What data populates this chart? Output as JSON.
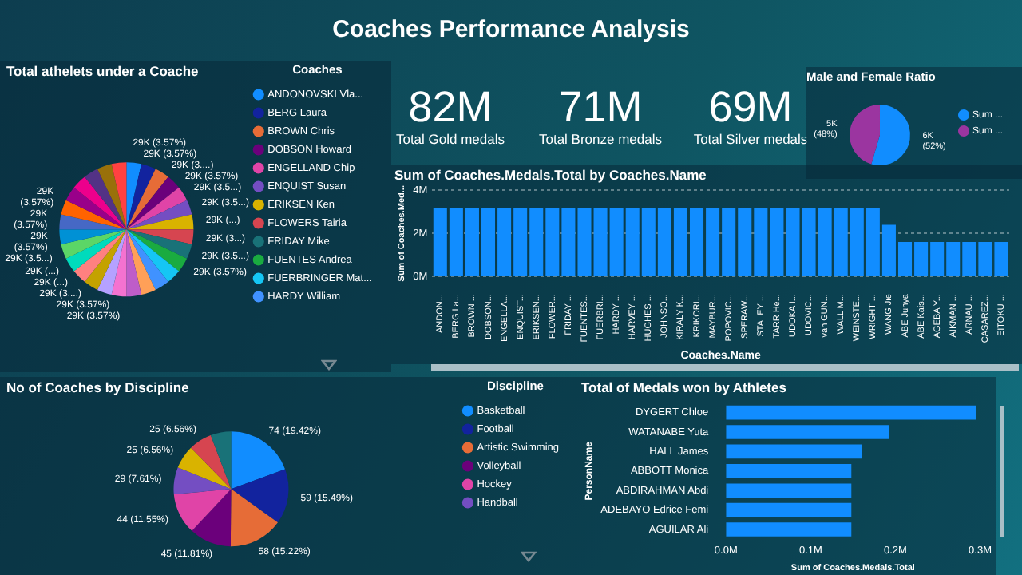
{
  "chart_data": [
    {
      "type": "other",
      "title": "Coaches Performance Analysis",
      "annotations": [
        "82M",
        "Total Gold medals",
        "71M",
        "Total Bronze medals",
        "69M",
        "Total Silver medals"
      ]
    },
    {
      "type": "pie",
      "title": "Total athelets under a Coache",
      "legend": "right",
      "legend_title": "Coaches",
      "categories": [
        "ANDONOVSKI Vla...",
        "BERG Laura",
        "BROWN Chris",
        "DOBSON Howard",
        "ENGELLAND Chip",
        "ENQUIST Susan",
        "ERIKSEN Ken",
        "FLOWERS Tairia",
        "FRIDAY Mike",
        "FUENTES Andrea",
        "FUERBRINGER Mat...",
        "HARDY William",
        null,
        null,
        null,
        null,
        null,
        null,
        null,
        null,
        null,
        null,
        null,
        null,
        null,
        null,
        null,
        null
      ],
      "values": [
        29000,
        29000,
        29000,
        29000,
        29000,
        29000,
        29000,
        29000,
        29000,
        29000,
        29000,
        29000,
        29000,
        29000,
        29000,
        29000,
        29000,
        29000,
        29000,
        29000,
        29000,
        29000,
        29000,
        29000,
        29000,
        29000,
        29000,
        29000
      ],
      "value_labels": [
        "29K (3.57%)",
        "29K (3.57%)",
        "29K (3....)",
        "29K (3.57%)",
        "29K (3.5...)",
        "29K (3.5...)",
        "29K (...)",
        "29K (3...)",
        "29K (3.5...)",
        "29K (3.57%)",
        null,
        null,
        null,
        null,
        "29K (3.57%)",
        "29K (3.57%)",
        "29K (3....)",
        "29K (...)",
        "29K (...)",
        "29K (3.5...)",
        "29K (3.57%)",
        "29K (3.57%)",
        "29K (3.57%)",
        null,
        null,
        null,
        null,
        null
      ],
      "colors": [
        "#118dff",
        "#12239e",
        "#e66c37",
        "#6b007b",
        "#e044a7",
        "#744ec2",
        "#d9b300",
        "#d64550",
        "#197278",
        "#1aab40",
        "#15c6f4",
        "#4092ff",
        "#ffa058",
        "#be5dc9",
        "#f472d0",
        "#b5a1ff",
        "#c4a200",
        "#ff8080",
        "#00dbbc",
        "#5bd667",
        "#0091d5",
        "#4668c5",
        "#ff6300",
        "#99008a",
        "#ec008c",
        "#533285",
        "#99700a",
        "#ff4141"
      ]
    },
    {
      "type": "pie",
      "title": "Male and Female Ratio",
      "legend": "right",
      "categories": [
        "Sum ...",
        "Sum ..."
      ],
      "values": [
        6000,
        5000
      ],
      "value_labels": [
        "6K (52%)",
        "5K (48%)"
      ],
      "colors": [
        "#118dff",
        "#9b35a0"
      ]
    },
    {
      "type": "bar",
      "title": "Sum of Coaches.Medals.Total by Coaches.Name",
      "xlabel": "Coaches.Name",
      "ylabel": "Sum of Coaches.Med...",
      "color": "#118dff",
      "grid": "y",
      "categories": [
        "ANDON...",
        "BERG La...",
        "BROWN ...",
        "DOBSON...",
        "ENGELLA...",
        "ENQUIST...",
        "ERIKSEN...",
        "FLOWER...",
        "FRIDAY ...",
        "FUENTES...",
        "FUERBRI...",
        "HARDY ...",
        "HARVEY ...",
        "HUGHES ...",
        "JOHNSO...",
        "KIRALY K...",
        "KRIKORI...",
        "MAYBUR...",
        "POPOVIC...",
        "SPERAW...",
        "STALEY ...",
        "TARR He...",
        "UDOKA I...",
        "UDOVIC...",
        "van GUN...",
        "WALL M...",
        "WEINSTE...",
        "WRIGHT ...",
        "WANG Jie",
        "ABE Junya",
        "ABE Kais...",
        "AGEBA Y...",
        "AIKMAN ...",
        "ARNAU ...",
        "CASAREZ...",
        "EITOKU ..."
      ],
      "values": [
        3.2,
        3.2,
        3.2,
        3.2,
        3.2,
        3.2,
        3.2,
        3.2,
        3.2,
        3.2,
        3.2,
        3.2,
        3.2,
        3.2,
        3.2,
        3.2,
        3.2,
        3.2,
        3.2,
        3.2,
        3.2,
        3.2,
        3.2,
        3.2,
        3.2,
        3.2,
        3.2,
        3.2,
        2.4,
        1.6,
        1.6,
        1.6,
        1.6,
        1.6,
        1.6,
        1.6
      ],
      "ylim": [
        0,
        4
      ],
      "yticks": [
        {
          "value": 0,
          "label": "0M"
        },
        {
          "value": 2,
          "label": "2M"
        },
        {
          "value": 4,
          "label": "4M"
        }
      ]
    },
    {
      "type": "pie",
      "title": "No of Coaches by Discipline",
      "legend": "right",
      "legend_title": "Discipline",
      "categories": [
        "Basketball",
        "Football",
        "Artistic Swimming",
        "Volleyball",
        "Hockey",
        "Handball",
        null,
        null,
        null
      ],
      "values": [
        74,
        59,
        58,
        45,
        44,
        29,
        25,
        25,
        22
      ],
      "value_labels": [
        "74 (19.42%)",
        "59 (15.49%)",
        "58 (15.22%)",
        "45 (11.81%)",
        "44 (11.55%)",
        "29 (7.61%)",
        "25 (6.56%)",
        "25 (6.56%)",
        null
      ],
      "colors": [
        "#118dff",
        "#12239e",
        "#e66c37",
        "#6b007b",
        "#e044a7",
        "#744ec2",
        "#d9b300",
        "#d64550",
        "#197278"
      ]
    },
    {
      "type": "bar",
      "orientation": "horizontal",
      "title": "Total of Medals won by Athletes",
      "xlabel": "Sum of Coaches.Medals.Total",
      "ylabel": "PersonName",
      "color": "#118dff",
      "categories": [
        "DYGERT Chloe",
        "WATANABE Yuta",
        "HALL James",
        "ABBOTT Monica",
        "ABDIRAHMAN Abdi",
        "ADEBAYO Edrice Femi",
        "AGUILAR Ali"
      ],
      "values": [
        0.295,
        0.193,
        0.16,
        0.148,
        0.148,
        0.148,
        0.148
      ],
      "xlim": [
        0,
        0.3
      ],
      "xticks": [
        {
          "value": 0,
          "label": "0.0M"
        },
        {
          "value": 0.1,
          "label": "0.1M"
        },
        {
          "value": 0.2,
          "label": "0.2M"
        },
        {
          "value": 0.3,
          "label": "0.3M"
        }
      ]
    }
  ]
}
